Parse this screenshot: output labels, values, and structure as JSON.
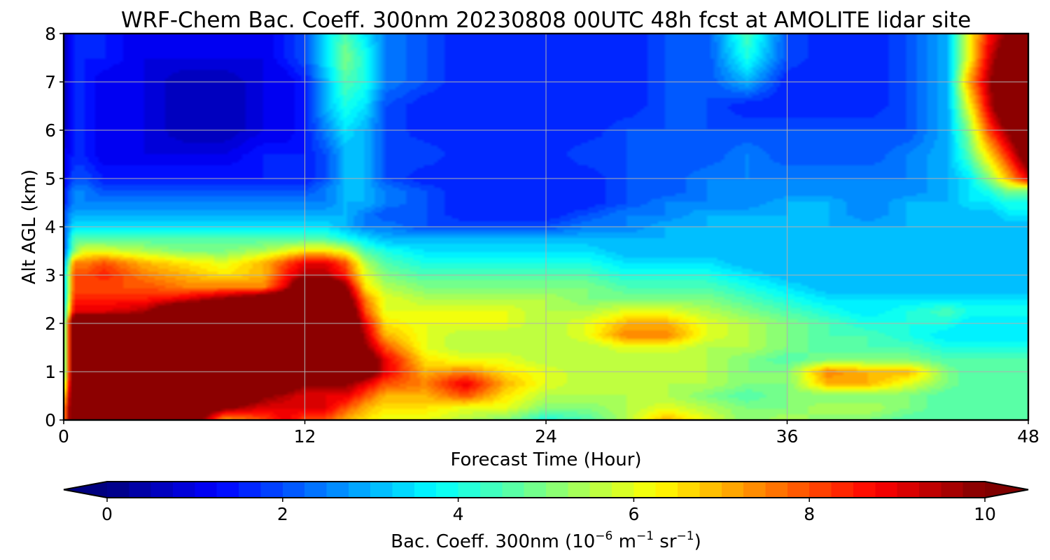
{
  "chart_data": {
    "type": "heatmap",
    "subtype": "filled-contour time-height cross section",
    "title": "WRF-Chem Bac. Coeff. 300nm  20230808 00UTC 48h fcst at AMOLITE lidar site",
    "xlabel": "Forecast Time (Hour)",
    "ylabel": "Alt AGL (km)",
    "xlim": [
      0,
      48
    ],
    "ylim": [
      0,
      8
    ],
    "x_ticks": [
      "0",
      "12",
      "24",
      "36",
      "48"
    ],
    "y_ticks": [
      "0",
      "1",
      "2",
      "3",
      "4",
      "5",
      "6",
      "7",
      "8"
    ],
    "grid": true,
    "colormap": "jet",
    "colorbar": {
      "orientation": "horizontal",
      "placement": "bottom",
      "extend": "both",
      "range": [
        0,
        10
      ],
      "ticks": [
        "0",
        "2",
        "4",
        "6",
        "8",
        "10"
      ],
      "label_main": "Bac. Coeff. 300nm  (10",
      "label_exp1": "−6",
      "label_mid": " m",
      "label_exp2": "−1",
      "label_mid2": " sr",
      "label_exp3": "−1",
      "label_end": ")"
    },
    "x": [
      0,
      0.5,
      1,
      2,
      4,
      6,
      8,
      10,
      11,
      12,
      13,
      14,
      15,
      16,
      18,
      20,
      22,
      24,
      26,
      28,
      30,
      32,
      34,
      36,
      38,
      40,
      42,
      44,
      45,
      46,
      47,
      48
    ],
    "y": [
      0,
      0.25,
      0.5,
      0.75,
      1,
      1.25,
      1.5,
      1.75,
      2,
      2.25,
      2.5,
      2.75,
      3,
      3.25,
      3.5,
      3.75,
      4,
      4.25,
      4.5,
      4.75,
      5,
      5.5,
      6,
      6.5,
      7,
      7.5,
      8
    ],
    "z": [
      [
        7,
        12,
        12,
        12,
        12,
        12,
        7,
        8,
        9,
        8,
        8,
        7,
        6.5,
        6,
        6,
        5.5,
        5,
        4,
        4.5,
        5.5,
        7,
        6,
        5,
        5.5,
        5,
        5,
        4.5,
        4.5,
        4.5,
        4.5,
        4.5,
        4.5
      ],
      [
        7,
        12,
        12,
        12,
        12,
        12,
        10,
        9,
        9,
        9,
        9,
        8,
        7,
        6.5,
        6.5,
        6,
        6,
        5,
        5,
        5.5,
        6,
        5.5,
        5,
        5,
        5.5,
        5.5,
        5,
        4.5,
        4.5,
        4.5,
        4.5,
        4.5
      ],
      [
        6,
        12,
        12,
        12,
        12,
        12,
        12,
        10,
        9.5,
        9,
        9,
        9,
        8,
        7,
        7,
        8,
        6.5,
        5.5,
        5.5,
        5.5,
        5.5,
        5,
        4.5,
        5,
        5,
        5,
        5,
        4.5,
        4.5,
        4.5,
        4.5,
        4.5
      ],
      [
        5,
        12,
        12,
        12,
        12,
        12,
        12,
        12,
        11,
        10,
        10,
        10,
        9,
        8,
        7.5,
        9,
        7,
        6,
        5.5,
        5.5,
        5.5,
        5.5,
        5,
        5,
        7,
        7,
        6,
        5,
        4.5,
        4.5,
        4.5,
        4.5
      ],
      [
        4,
        12,
        12,
        12,
        12,
        12,
        12,
        12,
        12,
        12,
        12,
        12,
        11,
        9,
        7,
        7.5,
        6.5,
        6,
        5.5,
        5.5,
        5.5,
        5.5,
        5,
        5,
        7.5,
        7,
        7,
        5,
        4.5,
        4.5,
        4.5,
        4.5
      ],
      [
        4,
        12,
        12,
        12,
        12,
        12,
        12,
        12,
        12,
        12,
        12,
        12,
        11,
        9,
        6.5,
        6,
        6,
        5.5,
        5.5,
        5.5,
        5.5,
        5.5,
        5,
        4.5,
        5,
        5,
        5,
        4.5,
        4.5,
        4.5,
        4.5,
        4.5
      ],
      [
        4,
        12,
        12,
        12,
        12,
        12,
        12,
        12,
        12,
        12,
        12,
        12,
        10,
        8,
        6,
        5.5,
        5.5,
        5.5,
        5.5,
        6,
        6,
        5.5,
        5.5,
        5,
        4.5,
        4.5,
        4.5,
        4,
        4,
        4,
        4,
        4
      ],
      [
        4,
        12,
        12,
        12,
        12,
        12,
        12,
        12,
        12,
        12,
        12,
        12,
        9.5,
        7,
        6,
        5.5,
        5.5,
        5.5,
        6,
        7.5,
        7.5,
        6,
        5.5,
        5,
        4.5,
        4.5,
        4,
        3.5,
        3.5,
        3.5,
        3.5,
        3.5
      ],
      [
        4,
        12,
        12,
        12,
        12,
        12,
        12,
        12,
        12,
        12,
        12,
        12,
        9,
        6.5,
        6,
        6,
        6,
        5.5,
        6,
        7,
        7,
        6,
        5.5,
        5,
        4.5,
        4,
        4,
        4,
        3.5,
        3.5,
        3.5,
        3.5
      ],
      [
        3.5,
        9,
        9,
        9,
        9.5,
        12,
        12,
        12,
        12,
        12,
        12,
        12,
        8,
        6,
        6,
        6,
        6,
        5.5,
        5.5,
        6,
        6,
        5.5,
        5,
        4.5,
        4,
        3.5,
        4,
        4.5,
        4,
        4,
        4,
        4
      ],
      [
        3,
        8.5,
        8.5,
        8.5,
        8.5,
        9,
        10,
        11,
        12,
        12,
        12,
        11,
        7.5,
        6,
        5.5,
        5.5,
        5.5,
        5.5,
        5,
        5,
        5,
        5,
        4.5,
        4,
        3.5,
        3.5,
        3.5,
        3.5,
        3.5,
        3.5,
        3.5,
        3.5
      ],
      [
        3,
        8,
        8,
        8,
        8,
        7.5,
        7.5,
        7.5,
        9,
        12,
        12,
        10,
        6.5,
        5.5,
        5,
        5,
        5,
        5,
        5,
        4.5,
        4.5,
        4.5,
        4,
        3.5,
        3,
        3,
        3,
        3,
        3,
        3,
        3,
        3
      ],
      [
        3,
        8,
        8,
        8.5,
        7.5,
        7,
        6.5,
        7,
        8.5,
        9.5,
        9.5,
        8.5,
        6,
        5,
        4.5,
        4.5,
        4.5,
        4.5,
        4.5,
        4,
        4,
        4,
        3.5,
        3,
        3,
        3,
        3,
        3,
        3,
        3,
        3,
        3
      ],
      [
        2.5,
        7.5,
        7.5,
        8,
        7,
        6.5,
        6,
        7,
        8,
        9,
        9,
        8,
        5.5,
        4.5,
        4,
        4,
        4,
        4,
        4,
        3.5,
        3.5,
        3.5,
        3,
        3,
        3,
        3,
        3,
        3,
        3,
        3,
        3,
        3
      ],
      [
        2,
        5,
        6,
        6,
        5.5,
        5,
        5,
        5.5,
        6,
        6.5,
        6.5,
        6,
        4.5,
        4,
        3.5,
        3.5,
        3.5,
        3.5,
        3.5,
        3,
        3,
        3,
        3,
        3,
        3,
        3,
        3,
        3,
        3,
        3,
        3,
        3
      ],
      [
        2,
        4.5,
        4.5,
        4.5,
        4.5,
        4.5,
        4.5,
        4.5,
        4.5,
        4.5,
        4.5,
        4,
        3.5,
        3,
        3,
        3,
        3,
        3,
        3,
        3,
        3,
        3,
        3,
        3,
        3,
        3,
        3,
        3,
        3,
        3,
        3,
        3
      ],
      [
        2,
        3.5,
        3.5,
        3.5,
        3.5,
        3.5,
        3.5,
        3.5,
        3.5,
        3.5,
        3.5,
        3,
        2.5,
        2.5,
        2,
        2,
        2,
        2,
        2.5,
        2.5,
        3,
        3,
        3,
        3,
        3,
        3,
        3,
        3,
        3,
        3,
        3,
        3
      ],
      [
        2,
        3,
        3,
        3,
        3,
        3,
        3,
        3,
        3,
        3,
        3,
        3,
        2.5,
        2,
        2,
        1.5,
        1.5,
        1.5,
        2,
        2.5,
        2.5,
        3,
        3,
        3,
        3,
        2.5,
        3,
        3,
        3,
        3,
        3.5,
        3.5
      ],
      [
        1.5,
        2.5,
        2.5,
        2.5,
        2.5,
        2.5,
        2.5,
        2.5,
        2.5,
        2.5,
        2.5,
        3,
        3,
        2.5,
        2,
        1.5,
        1.5,
        1.5,
        1.5,
        2,
        2.5,
        2.5,
        2.5,
        3,
        3,
        2.5,
        3,
        3,
        3.5,
        3.5,
        4,
        4
      ],
      [
        1.5,
        2.5,
        2.5,
        2,
        2,
        2,
        2,
        2,
        2,
        2,
        2.5,
        3,
        3,
        2.5,
        2,
        1.5,
        1.5,
        1.5,
        1.5,
        2,
        2,
        2.5,
        2.5,
        2.5,
        2.5,
        2.5,
        2.5,
        3,
        3.5,
        4,
        5,
        5
      ],
      [
        1,
        2,
        2,
        1.5,
        1.5,
        1.5,
        1.5,
        1.5,
        1.5,
        1.5,
        2,
        3,
        3,
        2,
        1.5,
        1.5,
        1.5,
        1.5,
        1.5,
        2,
        2,
        2.5,
        2.5,
        2.5,
        2.5,
        2.5,
        2.5,
        3,
        3.5,
        5,
        7,
        9
      ],
      [
        1,
        1.5,
        1.5,
        1,
        1,
        1,
        1,
        1.5,
        1.5,
        1.5,
        2,
        3,
        3,
        2,
        2,
        1.5,
        1.5,
        1.5,
        2,
        2,
        2,
        2,
        2.5,
        2,
        2,
        2,
        2.5,
        3,
        4.5,
        6.5,
        8.5,
        11
      ],
      [
        0.5,
        1.5,
        1.5,
        1,
        1,
        0.5,
        0.5,
        1,
        1,
        1.5,
        2.5,
        3.5,
        3,
        2,
        1.5,
        1.5,
        1.5,
        1.5,
        1.5,
        2,
        2,
        2,
        2,
        2,
        2,
        2,
        2,
        3,
        5,
        8,
        10,
        12
      ],
      [
        0.5,
        1.5,
        1.5,
        1,
        1,
        0.5,
        0.5,
        1,
        1,
        1.5,
        3,
        4,
        3.5,
        2,
        1.5,
        1.5,
        1.5,
        1.5,
        1.5,
        1.5,
        2,
        2,
        1.5,
        1.5,
        1.5,
        1.5,
        2,
        3,
        6,
        9,
        12,
        12
      ],
      [
        0.5,
        1.5,
        1.5,
        1,
        1,
        0.5,
        0.5,
        1,
        1,
        1.5,
        3,
        4.5,
        4,
        2.5,
        2,
        1.5,
        1.5,
        1.5,
        1.5,
        1.5,
        2,
        2,
        3,
        1.5,
        1.5,
        1.5,
        2,
        3,
        7,
        9.5,
        12,
        12
      ],
      [
        0.5,
        1.5,
        1.5,
        1.5,
        1,
        1,
        1,
        1,
        1.5,
        2,
        3.5,
        5,
        4,
        2.5,
        2,
        1.5,
        1.5,
        1.5,
        1.5,
        1.5,
        2,
        2,
        4,
        2,
        1.5,
        1.5,
        2,
        3,
        6,
        9,
        11,
        12
      ],
      [
        0.5,
        1.5,
        1.5,
        1.5,
        1,
        1,
        1,
        1,
        1.5,
        2,
        3.5,
        4.5,
        3.5,
        2.5,
        2,
        1.5,
        1.5,
        1.5,
        1.5,
        1.5,
        2,
        2,
        4.5,
        2,
        1.5,
        1.5,
        2,
        3,
        6,
        8.5,
        10,
        12
      ]
    ]
  }
}
